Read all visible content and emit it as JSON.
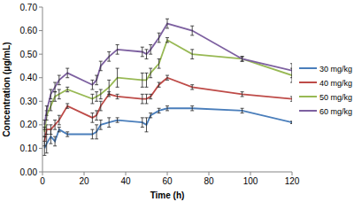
{
  "chart_data": {
    "type": "line",
    "x_label": "Time (h)",
    "y_label": "Concentration (μg/mL)",
    "x": [
      1,
      2,
      4,
      6,
      8,
      12,
      24,
      26,
      28,
      32,
      36,
      48,
      50,
      52,
      56,
      60,
      72,
      96,
      120
    ],
    "series": [
      {
        "name": "30 mg/kg",
        "color": "#4a7ebb",
        "values": [
          0.1,
          0.12,
          0.15,
          0.13,
          0.18,
          0.16,
          0.16,
          0.17,
          0.2,
          0.21,
          0.22,
          0.21,
          0.2,
          0.24,
          0.26,
          0.27,
          0.27,
          0.26,
          0.21
        ],
        "errors": [
          0.03,
          0.04,
          0.03,
          0.02,
          0.01,
          0.01,
          0.02,
          0.03,
          0.02,
          0.02,
          0.01,
          0.02,
          0.03,
          0.01,
          0.01,
          0.01,
          0.01,
          0.01,
          0.005
        ]
      },
      {
        "name": "40 mg/kg",
        "color": "#be4b48",
        "values": [
          0.13,
          0.18,
          0.18,
          0.2,
          0.22,
          0.28,
          0.23,
          0.24,
          0.28,
          0.33,
          0.32,
          0.31,
          0.31,
          0.32,
          0.37,
          0.4,
          0.36,
          0.33,
          0.31
        ],
        "errors": [
          0.02,
          0.02,
          0.02,
          0.02,
          0.02,
          0.01,
          0.02,
          0.02,
          0.02,
          0.01,
          0.01,
          0.02,
          0.02,
          0.01,
          0.01,
          0.01,
          0.01,
          0.01,
          0.01
        ]
      },
      {
        "name": "50 mg/kg",
        "color": "#98b954",
        "values": [
          0.17,
          0.24,
          0.28,
          0.32,
          0.33,
          0.35,
          0.31,
          0.32,
          0.33,
          0.36,
          0.4,
          0.39,
          0.39,
          0.42,
          0.46,
          0.56,
          0.5,
          0.48,
          0.41
        ],
        "errors": [
          0.02,
          0.02,
          0.02,
          0.02,
          0.02,
          0.01,
          0.02,
          0.02,
          0.02,
          0.03,
          0.04,
          0.03,
          0.03,
          0.02,
          0.02,
          0.01,
          0.02,
          0.01,
          0.03
        ]
      },
      {
        "name": "60 mg/kg",
        "color": "#7d60a0",
        "values": [
          0.2,
          0.26,
          0.33,
          0.36,
          0.39,
          0.42,
          0.37,
          0.39,
          0.45,
          0.49,
          0.52,
          0.51,
          0.5,
          0.52,
          0.57,
          0.63,
          0.6,
          0.48,
          0.43
        ],
        "errors": [
          0.02,
          0.02,
          0.02,
          0.02,
          0.02,
          0.02,
          0.02,
          0.02,
          0.02,
          0.02,
          0.02,
          0.02,
          0.02,
          0.02,
          0.02,
          0.02,
          0.02,
          0.01,
          0.03
        ]
      }
    ],
    "xlim": [
      0,
      120
    ],
    "xticks": [
      0,
      20,
      40,
      60,
      80,
      100,
      120
    ],
    "ylim": [
      0,
      0.7
    ],
    "yticks": [
      {
        "value": 0,
        "label": "0.00"
      },
      {
        "value": 0.1,
        "label": "0.10"
      },
      {
        "value": 0.2,
        "label": "0.20"
      },
      {
        "value": 0.3,
        "label": "0.30"
      },
      {
        "value": 0.4,
        "label": "0.40"
      },
      {
        "value": 0.5,
        "label": "0.50"
      },
      {
        "value": 0.6,
        "label": "0.60"
      },
      {
        "value": 0.7,
        "label": "0.70"
      }
    ],
    "grid": false,
    "legend": "right"
  }
}
